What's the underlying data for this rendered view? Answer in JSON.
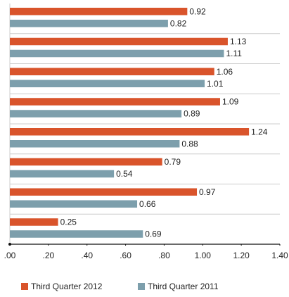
{
  "chart_data": {
    "type": "bar",
    "orientation": "horizontal",
    "categories": [
      null,
      null,
      null,
      null,
      null,
      null,
      null,
      null
    ],
    "series": [
      {
        "name": "Third Quarter 2012",
        "color": "#d9542b",
        "values": [
          0.92,
          1.13,
          1.06,
          1.09,
          1.24,
          0.79,
          0.97,
          0.25
        ]
      },
      {
        "name": "Third Quarter 2011",
        "color": "#7d9fac",
        "values": [
          0.82,
          1.11,
          1.01,
          0.89,
          0.88,
          0.54,
          0.66,
          0.69
        ]
      }
    ],
    "xlim": [
      0,
      1.4
    ],
    "xticks": [
      {
        "value": 0,
        "label": ".00"
      },
      {
        "value": 0.2,
        "label": ".20"
      },
      {
        "value": 0.4,
        "label": ".40"
      },
      {
        "value": 0.6,
        "label": ".60"
      },
      {
        "value": 0.8,
        "label": ".80"
      },
      {
        "value": 1.0,
        "label": "1.00"
      },
      {
        "value": 1.2,
        "label": "1.20"
      },
      {
        "value": 1.4,
        "label": "1.40"
      }
    ],
    "legend": "bottom",
    "grid": false
  }
}
